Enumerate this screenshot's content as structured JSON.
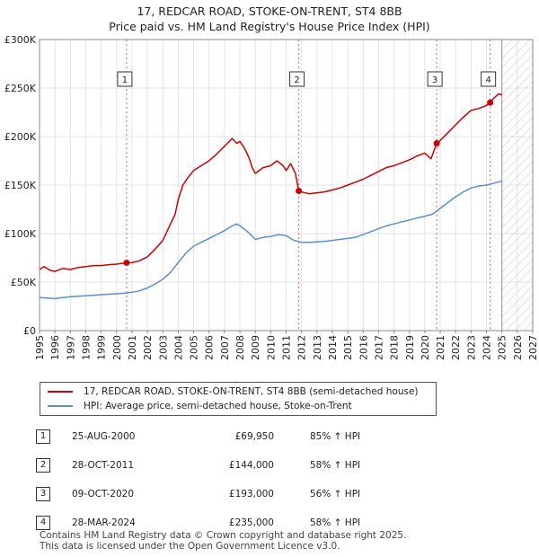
{
  "header": {
    "title_line1": "17, REDCAR ROAD, STOKE-ON-TRENT, ST4 8BB",
    "title_line2": "Price paid vs. HM Land Registry's House Price Index (HPI)"
  },
  "chart_data": {
    "type": "line",
    "title": "17, REDCAR ROAD, STOKE-ON-TRENT, ST4 8BB",
    "subtitle": "Price paid vs. HM Land Registry's House Price Index (HPI)",
    "xlim": [
      1995,
      2027
    ],
    "ylim": [
      0,
      300000
    ],
    "y_ticks": [
      0,
      50000,
      100000,
      150000,
      200000,
      250000,
      300000
    ],
    "y_tick_labels": [
      "£0",
      "£50K",
      "£100K",
      "£150K",
      "£200K",
      "£250K",
      "£300K"
    ],
    "x_ticks": [
      1995,
      1996,
      1997,
      1998,
      1999,
      2000,
      2001,
      2002,
      2003,
      2004,
      2005,
      2006,
      2007,
      2008,
      2009,
      2010,
      2011,
      2012,
      2013,
      2014,
      2015,
      2016,
      2017,
      2018,
      2019,
      2020,
      2021,
      2022,
      2023,
      2024,
      2025,
      2026,
      2027
    ],
    "grid": true,
    "forecast_start": 2025.0,
    "series": [
      {
        "name": "17, REDCAR ROAD, STOKE-ON-TRENT, ST4 8BB (semi-detached house)",
        "color": "#cc0000",
        "points": [
          [
            1995.0,
            63000
          ],
          [
            1995.3,
            66000
          ],
          [
            1995.7,
            62000
          ],
          [
            1996.0,
            61000
          ],
          [
            1996.5,
            64000
          ],
          [
            1997.0,
            63000
          ],
          [
            1997.5,
            65000
          ],
          [
            1998.0,
            66000
          ],
          [
            1998.5,
            67000
          ],
          [
            1999.0,
            67000
          ],
          [
            1999.5,
            68000
          ],
          [
            2000.0,
            68500
          ],
          [
            2000.65,
            69950
          ],
          [
            2001.0,
            70000
          ],
          [
            2001.5,
            72000
          ],
          [
            2002.0,
            76000
          ],
          [
            2002.5,
            84000
          ],
          [
            2003.0,
            93000
          ],
          [
            2003.5,
            110000
          ],
          [
            2003.8,
            120000
          ],
          [
            2004.0,
            135000
          ],
          [
            2004.3,
            150000
          ],
          [
            2004.6,
            157000
          ],
          [
            2005.0,
            165000
          ],
          [
            2005.5,
            170000
          ],
          [
            2006.0,
            175000
          ],
          [
            2006.5,
            182000
          ],
          [
            2007.0,
            190000
          ],
          [
            2007.5,
            198000
          ],
          [
            2007.8,
            193000
          ],
          [
            2008.0,
            195000
          ],
          [
            2008.3,
            188000
          ],
          [
            2008.6,
            178000
          ],
          [
            2008.8,
            168000
          ],
          [
            2009.0,
            162000
          ],
          [
            2009.5,
            168000
          ],
          [
            2010.0,
            170000
          ],
          [
            2010.4,
            175000
          ],
          [
            2010.8,
            170000
          ],
          [
            2011.0,
            165000
          ],
          [
            2011.3,
            172000
          ],
          [
            2011.6,
            162000
          ],
          [
            2011.82,
            144000
          ],
          [
            2012.0,
            143000
          ],
          [
            2012.5,
            141000
          ],
          [
            2013.0,
            142000
          ],
          [
            2013.5,
            143000
          ],
          [
            2014.0,
            145000
          ],
          [
            2014.5,
            147000
          ],
          [
            2015.0,
            150000
          ],
          [
            2015.5,
            153000
          ],
          [
            2016.0,
            156000
          ],
          [
            2016.5,
            160000
          ],
          [
            2017.0,
            164000
          ],
          [
            2017.5,
            168000
          ],
          [
            2018.0,
            170000
          ],
          [
            2018.5,
            173000
          ],
          [
            2019.0,
            176000
          ],
          [
            2019.5,
            180000
          ],
          [
            2020.0,
            183000
          ],
          [
            2020.4,
            177000
          ],
          [
            2020.77,
            193000
          ],
          [
            2021.0,
            196000
          ],
          [
            2021.5,
            204000
          ],
          [
            2022.0,
            212000
          ],
          [
            2022.5,
            220000
          ],
          [
            2023.0,
            227000
          ],
          [
            2023.5,
            229000
          ],
          [
            2024.0,
            232000
          ],
          [
            2024.24,
            235000
          ],
          [
            2024.5,
            240000
          ],
          [
            2024.8,
            244000
          ],
          [
            2025.0,
            243000
          ]
        ]
      },
      {
        "name": "HPI: Average price, semi-detached house, Stoke-on-Trent",
        "color": "#5b8fd4",
        "points": [
          [
            1995.0,
            34000
          ],
          [
            1995.5,
            33500
          ],
          [
            1996.0,
            33000
          ],
          [
            1996.5,
            34000
          ],
          [
            1997.0,
            35000
          ],
          [
            1997.5,
            35500
          ],
          [
            1998.0,
            36000
          ],
          [
            1998.5,
            36500
          ],
          [
            1999.0,
            37000
          ],
          [
            1999.5,
            37500
          ],
          [
            2000.0,
            38000
          ],
          [
            2000.5,
            38500
          ],
          [
            2001.0,
            39500
          ],
          [
            2001.5,
            41000
          ],
          [
            2002.0,
            44000
          ],
          [
            2002.5,
            48000
          ],
          [
            2003.0,
            53000
          ],
          [
            2003.5,
            60000
          ],
          [
            2004.0,
            70000
          ],
          [
            2004.5,
            80000
          ],
          [
            2005.0,
            87000
          ],
          [
            2005.5,
            91000
          ],
          [
            2006.0,
            95000
          ],
          [
            2006.5,
            99000
          ],
          [
            2007.0,
            103000
          ],
          [
            2007.5,
            108000
          ],
          [
            2007.8,
            110000
          ],
          [
            2008.0,
            108000
          ],
          [
            2008.5,
            102000
          ],
          [
            2009.0,
            94000
          ],
          [
            2009.5,
            96000
          ],
          [
            2010.0,
            97000
          ],
          [
            2010.5,
            99000
          ],
          [
            2011.0,
            98000
          ],
          [
            2011.5,
            93000
          ],
          [
            2012.0,
            91000
          ],
          [
            2012.5,
            91000
          ],
          [
            2013.0,
            91500
          ],
          [
            2013.5,
            92000
          ],
          [
            2014.0,
            93000
          ],
          [
            2014.5,
            94000
          ],
          [
            2015.0,
            95000
          ],
          [
            2015.5,
            96000
          ],
          [
            2016.0,
            99000
          ],
          [
            2016.5,
            102000
          ],
          [
            2017.0,
            105000
          ],
          [
            2017.5,
            108000
          ],
          [
            2018.0,
            110000
          ],
          [
            2018.5,
            112000
          ],
          [
            2019.0,
            114000
          ],
          [
            2019.5,
            116000
          ],
          [
            2020.0,
            118000
          ],
          [
            2020.5,
            120000
          ],
          [
            2021.0,
            126000
          ],
          [
            2021.5,
            132000
          ],
          [
            2022.0,
            138000
          ],
          [
            2022.5,
            143000
          ],
          [
            2023.0,
            147000
          ],
          [
            2023.5,
            149000
          ],
          [
            2024.0,
            150000
          ],
          [
            2024.5,
            152000
          ],
          [
            2025.0,
            154000
          ]
        ]
      }
    ],
    "sales": [
      {
        "num": "1",
        "x": 2000.65,
        "y": 69950
      },
      {
        "num": "2",
        "x": 2011.82,
        "y": 144000
      },
      {
        "num": "3",
        "x": 2020.77,
        "y": 193000
      },
      {
        "num": "4",
        "x": 2024.24,
        "y": 235000
      }
    ]
  },
  "legend": {
    "property_label": "17, REDCAR ROAD, STOKE-ON-TRENT, ST4 8BB (semi-detached house)",
    "hpi_label": "HPI: Average price, semi-detached house, Stoke-on-Trent",
    "property_color": "#cc0000",
    "hpi_color": "#5b8fd4"
  },
  "transactions": [
    {
      "num": "1",
      "date": "25-AUG-2000",
      "price": "£69,950",
      "hpi": "85% ↑ HPI"
    },
    {
      "num": "2",
      "date": "28-OCT-2011",
      "price": "£144,000",
      "hpi": "58% ↑ HPI"
    },
    {
      "num": "3",
      "date": "09-OCT-2020",
      "price": "£193,000",
      "hpi": "56% ↑ HPI"
    },
    {
      "num": "4",
      "date": "28-MAR-2024",
      "price": "£235,000",
      "hpi": "58% ↑ HPI"
    }
  ],
  "footer": {
    "line1": "Contains HM Land Registry data © Crown copyright and database right 2025.",
    "line2": "This data is licensed under the Open Government Licence v3.0."
  }
}
